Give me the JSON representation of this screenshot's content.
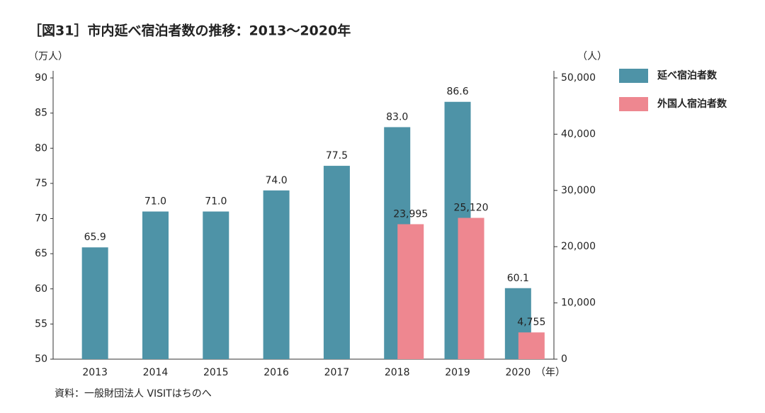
{
  "chart_data": {
    "type": "bar",
    "title": "［図31］市内延べ宿泊者数の推移：2013〜2020年",
    "y_axis_label": "（万人）",
    "y2_axis_label": "（人）",
    "x_axis_label": "（年）",
    "source": "資料：一般財団法人 VISITはちのへ",
    "categories": [
      "2013",
      "2014",
      "2015",
      "2016",
      "2017",
      "2018",
      "2019",
      "2020"
    ],
    "series": [
      {
        "name": "延べ宿泊者数",
        "color": "#4e93a7",
        "values": [
          65.9,
          71.0,
          71.0,
          74.0,
          77.5,
          83.0,
          86.6,
          60.1
        ],
        "value_labels": [
          "65.9",
          "71.0",
          "71.0",
          "74.0",
          "77.5",
          "83.0",
          "86.6",
          "60.1"
        ]
      },
      {
        "name": "外国人宿泊者数",
        "color": "#ee8790",
        "axis": "y2",
        "values": [
          null,
          null,
          null,
          null,
          null,
          23995,
          25120,
          4755
        ],
        "value_labels": [
          null,
          null,
          null,
          null,
          null,
          "23,995",
          "25,120",
          "4,755"
        ]
      }
    ],
    "ylim": [
      50,
      90
    ],
    "yticks": [
      50,
      55,
      60,
      65,
      70,
      75,
      80,
      85,
      90
    ],
    "y2lim": [
      0,
      50000
    ],
    "y2ticks": [
      0,
      {
        "value": 10000,
        "label": "10,000"
      },
      {
        "value": 20000,
        "label": "20,000"
      },
      {
        "value": 30000,
        "label": "30,000"
      },
      {
        "value": 40000,
        "label": "40,000"
      },
      {
        "value": 50000,
        "label": "50,000"
      }
    ],
    "grid": false,
    "legend": "right"
  }
}
